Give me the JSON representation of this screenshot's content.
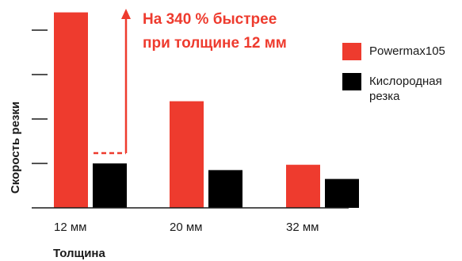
{
  "chart_data": {
    "type": "bar",
    "categories": [
      "12 мм",
      "20 мм",
      "32 мм"
    ],
    "series": [
      {
        "name": "Powermax105",
        "values": [
          4.4,
          2.4,
          0.97
        ],
        "color": "#ee3b2e"
      },
      {
        "name": "Кислородная резка",
        "name_lines": [
          "Кислородная",
          "резка"
        ],
        "values": [
          1.0,
          0.85,
          0.65
        ],
        "color": "#000000"
      }
    ],
    "xlabel": "Толщина",
    "ylabel": "Скорость резки",
    "ylim": [
      0,
      4.5
    ],
    "yticks": [
      1,
      2,
      3,
      4
    ],
    "annotation": {
      "lines": [
        "На 340 % быстрее",
        "при толщине 12 мм"
      ],
      "color": "#ee3b2e"
    },
    "legend_position": "right"
  }
}
